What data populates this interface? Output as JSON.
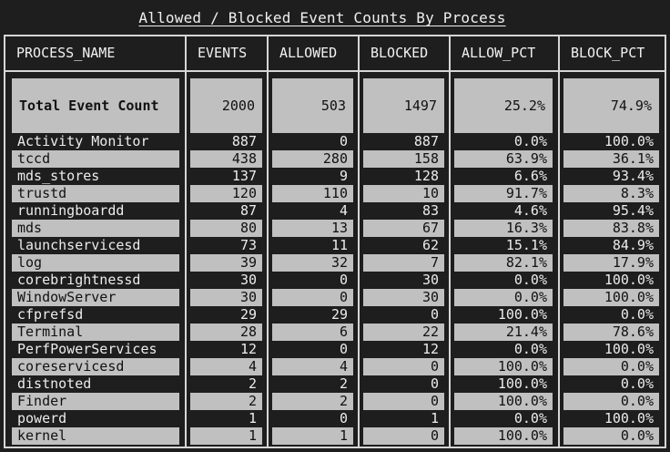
{
  "title": "Allowed / Blocked Event Counts By Process",
  "columns": [
    "PROCESS_NAME",
    "EVENTS",
    "ALLOWED",
    "BLOCKED",
    "ALLOW_PCT",
    "BLOCK_PCT"
  ],
  "total": {
    "label": "Total Event Count",
    "events": "2000",
    "allowed": "503",
    "blocked": "1497",
    "allow_pct": "25.2%",
    "block_pct": "74.9%"
  },
  "rows": [
    {
      "name": "Activity Monitor",
      "events": "887",
      "allowed": "0",
      "blocked": "887",
      "allow_pct": "0.0%",
      "block_pct": "100.0%"
    },
    {
      "name": "tccd",
      "events": "438",
      "allowed": "280",
      "blocked": "158",
      "allow_pct": "63.9%",
      "block_pct": "36.1%"
    },
    {
      "name": "mds_stores",
      "events": "137",
      "allowed": "9",
      "blocked": "128",
      "allow_pct": "6.6%",
      "block_pct": "93.4%"
    },
    {
      "name": "trustd",
      "events": "120",
      "allowed": "110",
      "blocked": "10",
      "allow_pct": "91.7%",
      "block_pct": "8.3%"
    },
    {
      "name": "runningboardd",
      "events": "87",
      "allowed": "4",
      "blocked": "83",
      "allow_pct": "4.6%",
      "block_pct": "95.4%"
    },
    {
      "name": "mds",
      "events": "80",
      "allowed": "13",
      "blocked": "67",
      "allow_pct": "16.3%",
      "block_pct": "83.8%"
    },
    {
      "name": "launchservicesd",
      "events": "73",
      "allowed": "11",
      "blocked": "62",
      "allow_pct": "15.1%",
      "block_pct": "84.9%"
    },
    {
      "name": "log",
      "events": "39",
      "allowed": "32",
      "blocked": "7",
      "allow_pct": "82.1%",
      "block_pct": "17.9%"
    },
    {
      "name": "corebrightnessd",
      "events": "30",
      "allowed": "0",
      "blocked": "30",
      "allow_pct": "0.0%",
      "block_pct": "100.0%"
    },
    {
      "name": "WindowServer",
      "events": "30",
      "allowed": "0",
      "blocked": "30",
      "allow_pct": "0.0%",
      "block_pct": "100.0%"
    },
    {
      "name": "cfprefsd",
      "events": "29",
      "allowed": "29",
      "blocked": "0",
      "allow_pct": "100.0%",
      "block_pct": "0.0%"
    },
    {
      "name": "Terminal",
      "events": "28",
      "allowed": "6",
      "blocked": "22",
      "allow_pct": "21.4%",
      "block_pct": "78.6%"
    },
    {
      "name": "PerfPowerServices",
      "events": "12",
      "allowed": "0",
      "blocked": "12",
      "allow_pct": "0.0%",
      "block_pct": "100.0%"
    },
    {
      "name": "coreservicesd",
      "events": "4",
      "allowed": "4",
      "blocked": "0",
      "allow_pct": "100.0%",
      "block_pct": "0.0%"
    },
    {
      "name": "distnoted",
      "events": "2",
      "allowed": "2",
      "blocked": "0",
      "allow_pct": "100.0%",
      "block_pct": "0.0%"
    },
    {
      "name": "Finder",
      "events": "2",
      "allowed": "2",
      "blocked": "0",
      "allow_pct": "100.0%",
      "block_pct": "0.0%"
    },
    {
      "name": "powerd",
      "events": "1",
      "allowed": "0",
      "blocked": "1",
      "allow_pct": "0.0%",
      "block_pct": "100.0%"
    },
    {
      "name": "kernel",
      "events": "1",
      "allowed": "1",
      "blocked": "0",
      "allow_pct": "100.0%",
      "block_pct": "0.0%"
    }
  ]
}
